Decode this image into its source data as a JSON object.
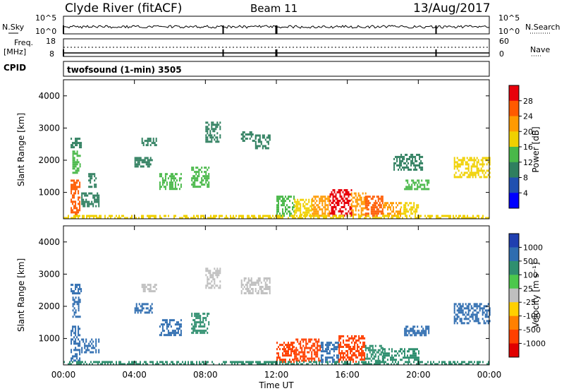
{
  "header": {
    "station": "Clyde River (fitACF)",
    "beam": "Beam 11",
    "date": "13/Aug/2017"
  },
  "status": {
    "nsky_label": "N.Sky",
    "nsearch_label": "N.Search",
    "nsky_ticks": [
      "10^5",
      "10^0"
    ],
    "nsearch_ticks": [
      "10^5",
      "10^0"
    ],
    "freq_label": "Freq.",
    "freq_unit": "[MHz]",
    "freq_ticks": [
      "18",
      "8"
    ],
    "nave_label": "Nave",
    "nave_ticks": [
      "60",
      "0"
    ],
    "cpid_label": "CPID",
    "cpid_text": "twofsound (1-min) 3505"
  },
  "time_axis": {
    "label": "Time UT",
    "ticks": [
      "00:00",
      "04:00",
      "08:00",
      "12:00",
      "16:00",
      "20:00",
      "00:00"
    ],
    "range_hours": [
      0,
      24
    ]
  },
  "colorbars": {
    "power": {
      "label": "Power [dB]",
      "ticks": [
        "28",
        "24",
        "20",
        "16",
        "12",
        "8",
        "4"
      ],
      "colors": [
        "#e8000b",
        "#ff5a00",
        "#ff9a00",
        "#f0d000",
        "#49b849",
        "#2f7f5f",
        "#2050b0",
        "#0000ff"
      ]
    },
    "velocity": {
      "label": "Velocity [m s⁻¹]",
      "ticks": [
        "1000",
        "500",
        "100",
        "25",
        "-25",
        "-100",
        "-500",
        "-1000"
      ],
      "colors": [
        "#1f3fb0",
        "#2f6db0",
        "#2f8f6f",
        "#4cc84c",
        "#bfbfbf",
        "#ffd000",
        "#ff8000",
        "#ff4000",
        "#e00000"
      ]
    }
  },
  "chart_data": [
    {
      "type": "heatmap",
      "title": "Power",
      "ylabel": "Slant Range [km]",
      "xlabel": "",
      "x_unit": "hours UT",
      "xlim": [
        0,
        24
      ],
      "ylim": [
        180,
        4500
      ],
      "yticks": [
        1000,
        2000,
        3000,
        4000
      ],
      "colorbar": "Power [dB]",
      "regions": [
        {
          "t": [
            0.4,
            0.9
          ],
          "r": [
            300,
            1400
          ],
          "value": 24
        },
        {
          "t": [
            0.5,
            0.9
          ],
          "r": [
            1600,
            2300
          ],
          "value": 12
        },
        {
          "t": [
            0.4,
            1.0
          ],
          "r": [
            2400,
            2700
          ],
          "value": 8
        },
        {
          "t": [
            1.0,
            2.0
          ],
          "r": [
            600,
            1000
          ],
          "value": 8
        },
        {
          "t": [
            1.4,
            1.8
          ],
          "r": [
            1200,
            1600
          ],
          "value": 8
        },
        {
          "t": [
            4.0,
            5.0
          ],
          "r": [
            1800,
            2100
          ],
          "value": 8
        },
        {
          "t": [
            4.4,
            5.2
          ],
          "r": [
            2500,
            2700
          ],
          "value": 8
        },
        {
          "t": [
            5.4,
            6.6
          ],
          "r": [
            1100,
            1600
          ],
          "value": 12
        },
        {
          "t": [
            7.2,
            8.2
          ],
          "r": [
            1200,
            1800
          ],
          "value": 12
        },
        {
          "t": [
            8.0,
            8.8
          ],
          "r": [
            2600,
            3200
          ],
          "value": 8
        },
        {
          "t": [
            10.0,
            10.8
          ],
          "r": [
            2600,
            2900
          ],
          "value": 8
        },
        {
          "t": [
            10.8,
            11.6
          ],
          "r": [
            2400,
            2800
          ],
          "value": 8
        },
        {
          "t": [
            12.0,
            13.0
          ],
          "r": [
            300,
            900
          ],
          "value": 12
        },
        {
          "t": [
            13.0,
            14.0
          ],
          "r": [
            300,
            800
          ],
          "value": 16
        },
        {
          "t": [
            14.0,
            15.0
          ],
          "r": [
            300,
            900
          ],
          "value": 20
        },
        {
          "t": [
            15.0,
            16.2
          ],
          "r": [
            300,
            1100
          ],
          "value": 28
        },
        {
          "t": [
            16.2,
            17.0
          ],
          "r": [
            300,
            1000
          ],
          "value": 20
        },
        {
          "t": [
            17.0,
            18.0
          ],
          "r": [
            300,
            900
          ],
          "value": 24
        },
        {
          "t": [
            18.0,
            19.0
          ],
          "r": [
            300,
            700
          ],
          "value": 20
        },
        {
          "t": [
            19.0,
            20.0
          ],
          "r": [
            350,
            700
          ],
          "value": 16
        },
        {
          "t": [
            19.2,
            20.6
          ],
          "r": [
            1100,
            1400
          ],
          "value": 12
        },
        {
          "t": [
            18.6,
            20.2
          ],
          "r": [
            1700,
            2200
          ],
          "value": 8
        },
        {
          "t": [
            22.0,
            24.0
          ],
          "r": [
            1500,
            2100
          ],
          "value": 16
        },
        {
          "t": [
            0.0,
            24.0
          ],
          "r": [
            180,
            300
          ],
          "value": 16
        }
      ]
    },
    {
      "type": "heatmap",
      "title": "Velocity",
      "ylabel": "Slant Range [km]",
      "xlabel": "Time UT",
      "x_unit": "hours UT",
      "xlim": [
        0,
        24
      ],
      "ylim": [
        180,
        4500
      ],
      "yticks": [
        1000,
        2000,
        3000,
        4000
      ],
      "colorbar": "Velocity [m s⁻¹]",
      "regions": [
        {
          "t": [
            0.4,
            0.9
          ],
          "r": [
            300,
            1400
          ],
          "value": 500
        },
        {
          "t": [
            0.5,
            0.9
          ],
          "r": [
            1600,
            2300
          ],
          "value": 500
        },
        {
          "t": [
            0.4,
            1.0
          ],
          "r": [
            2400,
            2700
          ],
          "value": 500
        },
        {
          "t": [
            1.0,
            2.0
          ],
          "r": [
            600,
            1000
          ],
          "value": 500
        },
        {
          "t": [
            4.0,
            5.0
          ],
          "r": [
            1800,
            2100
          ],
          "value": 500
        },
        {
          "t": [
            4.4,
            5.2
          ],
          "r": [
            2500,
            2700
          ],
          "value": 0
        },
        {
          "t": [
            5.4,
            6.6
          ],
          "r": [
            1100,
            1600
          ],
          "value": 500
        },
        {
          "t": [
            7.2,
            8.2
          ],
          "r": [
            1200,
            1800
          ],
          "value": 100
        },
        {
          "t": [
            8.0,
            8.8
          ],
          "r": [
            2600,
            3200
          ],
          "value": 0
        },
        {
          "t": [
            10.0,
            11.6
          ],
          "r": [
            2400,
            2900
          ],
          "value": 0
        },
        {
          "t": [
            12.0,
            13.0
          ],
          "r": [
            300,
            900
          ],
          "value": -500
        },
        {
          "t": [
            13.0,
            14.5
          ],
          "r": [
            300,
            1000
          ],
          "value": -500
        },
        {
          "t": [
            14.5,
            15.5
          ],
          "r": [
            300,
            900
          ],
          "value": 500
        },
        {
          "t": [
            15.5,
            17.0
          ],
          "r": [
            300,
            1100
          ],
          "value": -500
        },
        {
          "t": [
            17.0,
            18.0
          ],
          "r": [
            300,
            800
          ],
          "value": 100
        },
        {
          "t": [
            18.0,
            20.0
          ],
          "r": [
            350,
            700
          ],
          "value": 100
        },
        {
          "t": [
            19.2,
            20.6
          ],
          "r": [
            1100,
            1400
          ],
          "value": 500
        },
        {
          "t": [
            22.0,
            24.0
          ],
          "r": [
            1500,
            2100
          ],
          "value": 500
        },
        {
          "t": [
            0.0,
            24.0
          ],
          "r": [
            180,
            300
          ],
          "value": 100
        }
      ]
    }
  ]
}
